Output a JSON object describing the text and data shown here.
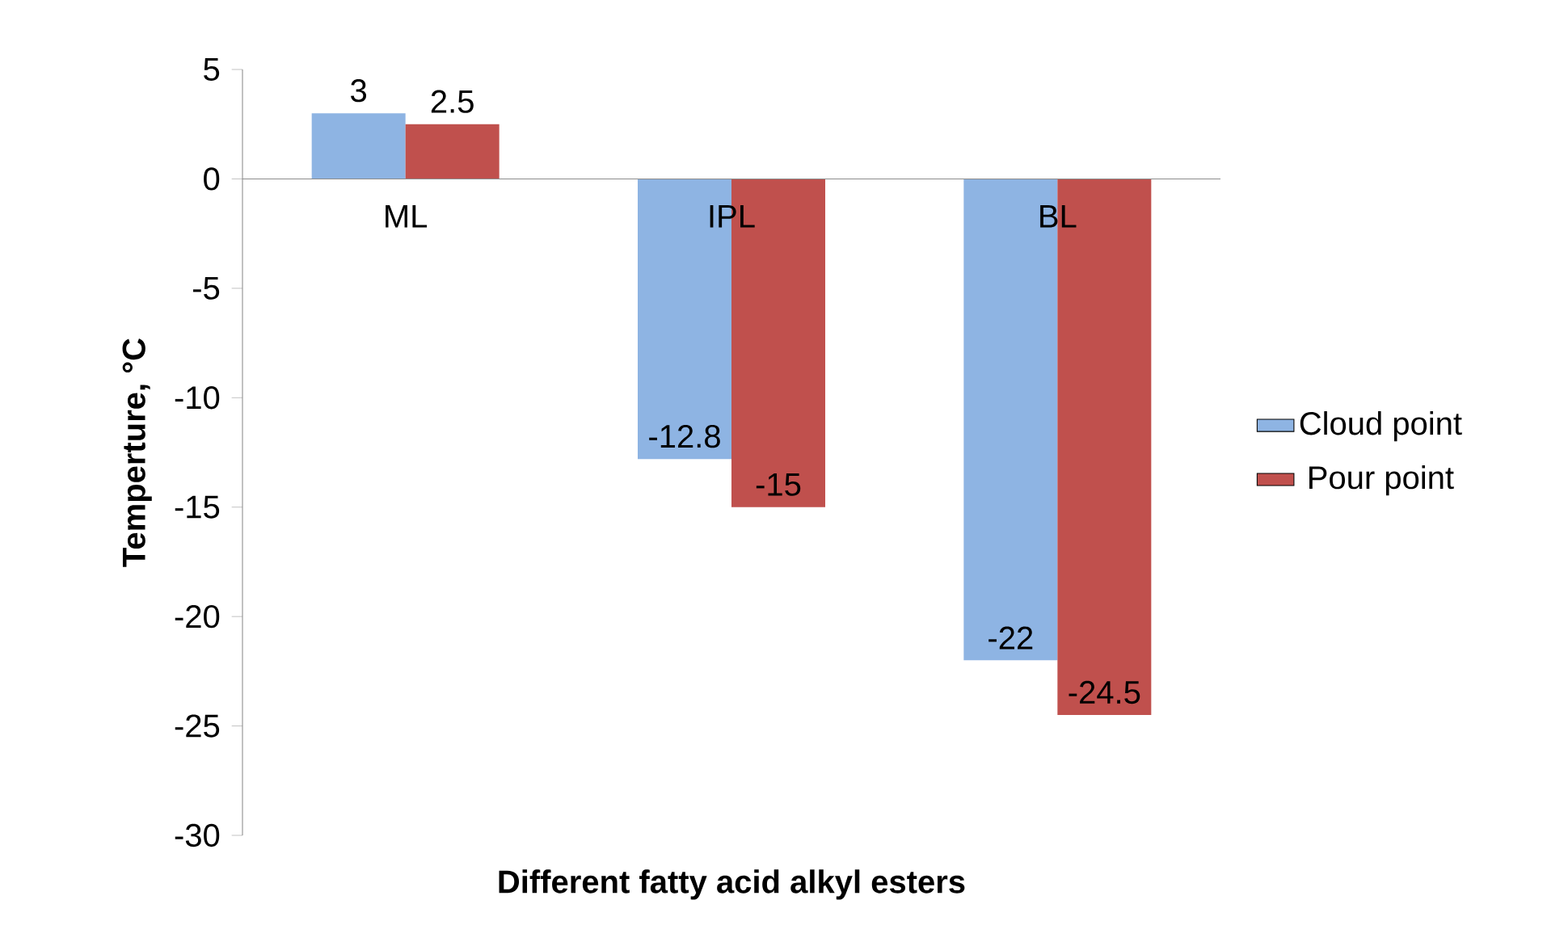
{
  "chart_data": {
    "type": "bar",
    "xlabel": "Different fatty acid alkyl esters",
    "ylabel": "Temperture, °C",
    "categories": [
      "ML",
      "IPL",
      "BL"
    ],
    "series": [
      {
        "name": "Cloud point",
        "color": "#8eb4e3",
        "values": [
          3,
          -12.8,
          -22
        ]
      },
      {
        "name": "Pour point",
        "color": "#c0504d",
        "values": [
          2.5,
          -15,
          -24.5
        ]
      }
    ],
    "ylim": [
      -30,
      5
    ],
    "yticks": [
      -30,
      -25,
      -20,
      -15,
      -10,
      -5,
      0,
      5
    ],
    "data_labels": true,
    "legend": "right",
    "grid": false
  }
}
